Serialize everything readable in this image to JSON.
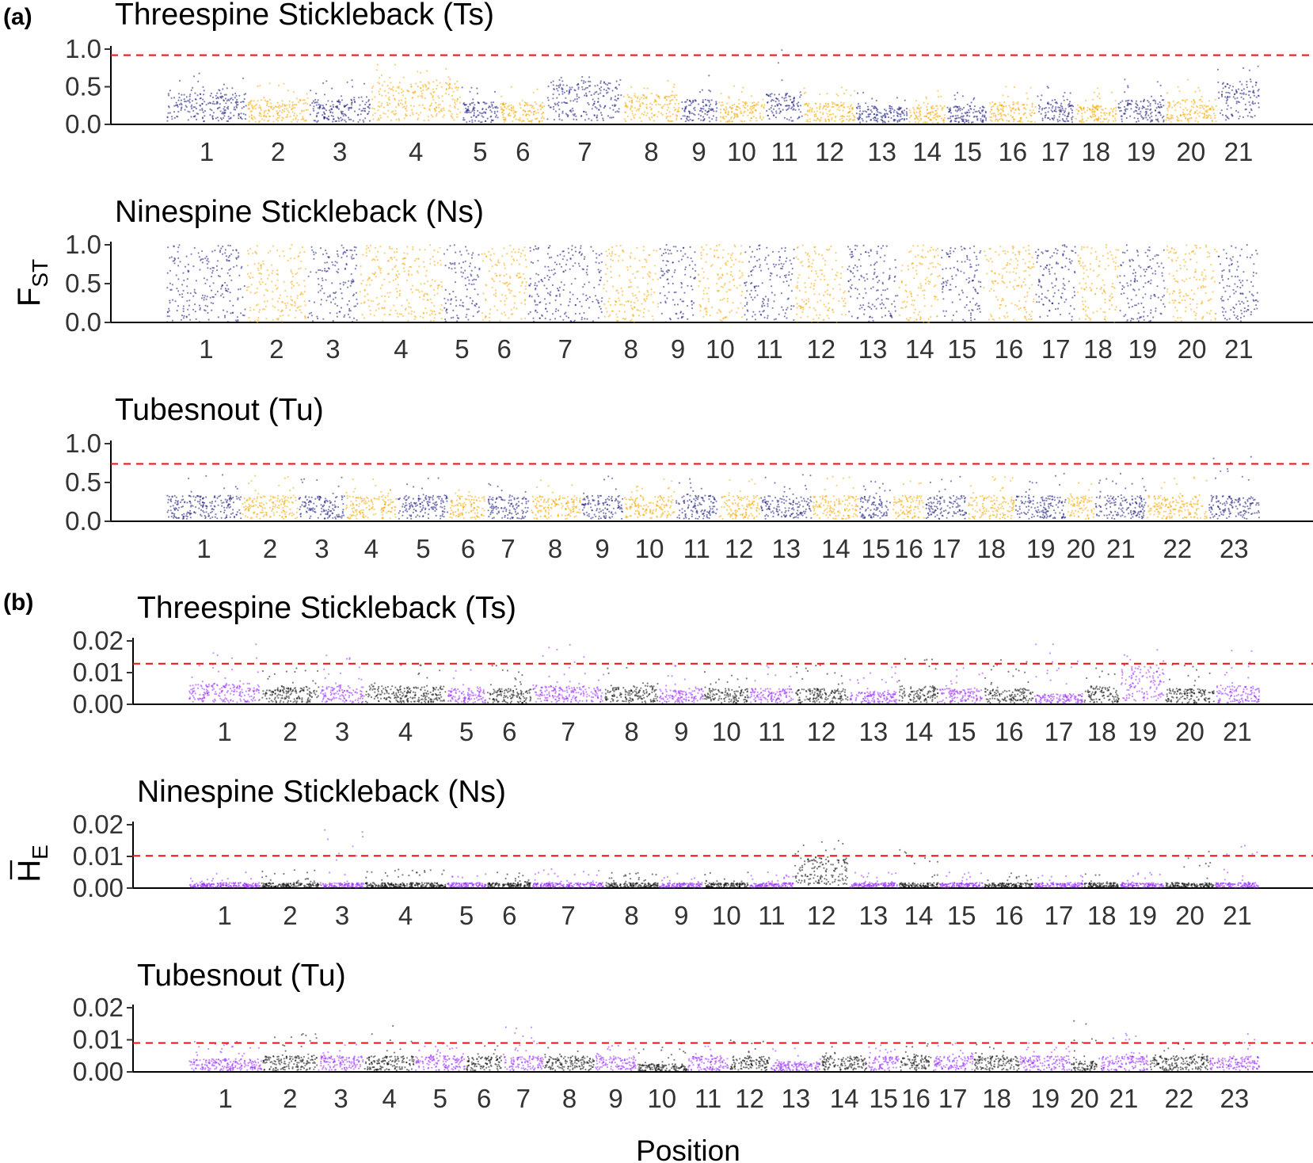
{
  "figure": {
    "panel_a_label": "(a)",
    "panel_b_label": "(b)",
    "ylabel_a_main": "F",
    "ylabel_a_sub": "ST",
    "ylabel_b_main": "H",
    "ylabel_b_sub": "E",
    "xlabel": "Position"
  },
  "chart_data": [
    {
      "type": "scatter",
      "panel": "(a)",
      "title": "Threespine Stickleback (Ts)",
      "ylabel": "FST",
      "xlabel": "Position",
      "y_ticks": [
        "0.0",
        "0.5",
        "1.0"
      ],
      "ylim": [
        0,
        1.0
      ],
      "threshold": 0.92,
      "colors": [
        "#1a1a80",
        "#f5a800"
      ],
      "categories": [
        "1",
        "2",
        "3",
        "4",
        "5",
        "6",
        "7",
        "8",
        "9",
        "10",
        "11",
        "12",
        "13",
        "14",
        "15",
        "16",
        "17",
        "18",
        "19",
        "20",
        "21"
      ],
      "chrom_length": [
        17.0,
        13.0,
        13.0,
        19.0,
        8.0,
        10.0,
        16.0,
        12.0,
        8.0,
        10.0,
        8.0,
        11.0,
        11.0,
        8.0,
        9.0,
        10.0,
        8.0,
        9.0,
        10.0,
        11.0,
        9.0
      ],
      "typical_value": [
        0.25,
        0.2,
        0.2,
        0.35,
        0.18,
        0.18,
        0.35,
        0.25,
        0.2,
        0.18,
        0.25,
        0.18,
        0.15,
        0.15,
        0.15,
        0.18,
        0.18,
        0.15,
        0.2,
        0.2,
        0.35
      ],
      "max_value": [
        0.68,
        0.55,
        0.6,
        0.8,
        0.52,
        0.5,
        0.65,
        0.58,
        0.65,
        0.55,
        1.0,
        0.5,
        0.45,
        0.45,
        0.45,
        0.55,
        0.52,
        0.5,
        0.6,
        0.6,
        0.78
      ]
    },
    {
      "type": "scatter",
      "panel": "(a)",
      "title": "Ninespine Stickleback (Ns)",
      "ylabel": "FST",
      "xlabel": "Position",
      "y_ticks": [
        "0.0",
        "0.5",
        "1.0"
      ],
      "ylim": [
        0,
        1.0
      ],
      "threshold": null,
      "colors": [
        "#1a1a80",
        "#f5a800"
      ],
      "categories": [
        "1",
        "2",
        "3",
        "4",
        "5",
        "6",
        "7",
        "8",
        "9",
        "10",
        "11",
        "12",
        "13",
        "14",
        "15",
        "16",
        "17",
        "18",
        "19",
        "20",
        "21"
      ],
      "chrom_length": [
        17.0,
        13.0,
        11.0,
        18.0,
        8.0,
        10.0,
        16.0,
        12.0,
        8.0,
        10.0,
        11.0,
        11.0,
        11.0,
        9.0,
        9.0,
        11.0,
        9.0,
        9.0,
        10.0,
        11.0,
        9.0
      ],
      "typical_value": [
        0.5,
        0.5,
        0.5,
        0.5,
        0.5,
        0.5,
        0.5,
        0.5,
        0.5,
        0.5,
        0.5,
        0.5,
        0.5,
        0.5,
        0.5,
        0.5,
        0.5,
        0.5,
        0.5,
        0.5,
        0.5
      ],
      "max_value": [
        1.0,
        1.0,
        1.0,
        1.0,
        1.0,
        1.0,
        1.0,
        1.0,
        1.0,
        1.0,
        1.0,
        1.0,
        1.0,
        1.0,
        1.0,
        1.0,
        1.0,
        1.0,
        1.0,
        1.0,
        1.0
      ]
    },
    {
      "type": "scatter",
      "panel": "(a)",
      "title": "Tubesnout (Tu)",
      "ylabel": "FST",
      "xlabel": "Position",
      "y_ticks": [
        "0.0",
        "0.5",
        "1.0"
      ],
      "ylim": [
        0,
        1.0
      ],
      "threshold": 0.74,
      "colors": [
        "#1a1a80",
        "#f5a800"
      ],
      "categories": [
        "1",
        "2",
        "3",
        "4",
        "5",
        "6",
        "7",
        "8",
        "9",
        "10",
        "11",
        "12",
        "13",
        "14",
        "15",
        "16",
        "17",
        "18",
        "19",
        "20",
        "21",
        "22",
        "23"
      ],
      "chrom_length": [
        16.0,
        12.0,
        10.0,
        11.0,
        11.0,
        8.0,
        9.0,
        11.0,
        9.0,
        11.0,
        9.0,
        9.0,
        11.0,
        10.0,
        7.0,
        7.0,
        9.0,
        10.0,
        11.0,
        6.0,
        11.0,
        13.0,
        11.0
      ],
      "typical_value": [
        0.2,
        0.2,
        0.2,
        0.2,
        0.2,
        0.2,
        0.2,
        0.2,
        0.2,
        0.2,
        0.2,
        0.2,
        0.2,
        0.2,
        0.2,
        0.2,
        0.2,
        0.2,
        0.2,
        0.2,
        0.2,
        0.2,
        0.2
      ],
      "max_value": [
        0.62,
        0.6,
        0.58,
        0.55,
        0.62,
        0.55,
        0.6,
        0.58,
        0.6,
        0.55,
        0.58,
        0.55,
        0.6,
        0.58,
        0.55,
        0.55,
        0.6,
        0.58,
        0.62,
        0.5,
        0.62,
        0.6,
        0.85
      ]
    },
    {
      "type": "scatter",
      "panel": "(b)",
      "title": "Threespine Stickleback (Ts)",
      "ylabel": "HE",
      "xlabel": "Position",
      "y_ticks": [
        "0.00",
        "0.01",
        "0.02"
      ],
      "ylim": [
        0,
        0.02
      ],
      "threshold": 0.0128,
      "colors": [
        "#9b30ff",
        "#111111"
      ],
      "categories": [
        "1",
        "2",
        "3",
        "4",
        "5",
        "6",
        "7",
        "8",
        "9",
        "10",
        "11",
        "12",
        "13",
        "14",
        "15",
        "16",
        "17",
        "18",
        "19",
        "20",
        "21"
      ],
      "chrom_length": [
        16.0,
        13.0,
        10.0,
        18.0,
        9.0,
        10.0,
        16.0,
        12.0,
        10.0,
        10.0,
        10.0,
        12.0,
        11.0,
        9.0,
        10.0,
        11.0,
        11.0,
        8.0,
        10.0,
        11.0,
        10.0
      ],
      "typical_value": [
        0.004,
        0.0035,
        0.0035,
        0.0035,
        0.003,
        0.003,
        0.0035,
        0.0035,
        0.003,
        0.003,
        0.003,
        0.003,
        0.0025,
        0.0035,
        0.003,
        0.003,
        0.002,
        0.0035,
        0.0075,
        0.003,
        0.0035
      ],
      "max_value": [
        0.019,
        0.013,
        0.016,
        0.014,
        0.012,
        0.013,
        0.019,
        0.013,
        0.013,
        0.014,
        0.013,
        0.013,
        0.012,
        0.018,
        0.012,
        0.015,
        0.019,
        0.013,
        0.018,
        0.013,
        0.018
      ]
    },
    {
      "type": "scatter",
      "panel": "(b)",
      "title": "Ninespine Stickleback (Ns)",
      "ylabel": "HE",
      "xlabel": "Position",
      "y_ticks": [
        "0.00",
        "0.01",
        "0.02"
      ],
      "ylim": [
        0,
        0.02
      ],
      "threshold": 0.0102,
      "colors": [
        "#9b30ff",
        "#111111"
      ],
      "categories": [
        "1",
        "2",
        "3",
        "4",
        "5",
        "6",
        "7",
        "8",
        "9",
        "10",
        "11",
        "12",
        "13",
        "14",
        "15",
        "16",
        "17",
        "18",
        "19",
        "20",
        "21"
      ],
      "chrom_length": [
        16.0,
        13.0,
        10.0,
        18.0,
        9.0,
        10.0,
        16.0,
        12.0,
        10.0,
        10.0,
        10.0,
        12.0,
        11.0,
        9.0,
        10.0,
        11.0,
        11.0,
        8.0,
        10.0,
        11.0,
        10.0
      ],
      "typical_value": [
        0.001,
        0.001,
        0.001,
        0.001,
        0.001,
        0.001,
        0.001,
        0.001,
        0.001,
        0.001,
        0.001,
        0.006,
        0.001,
        0.001,
        0.001,
        0.001,
        0.001,
        0.001,
        0.001,
        0.001,
        0.001
      ],
      "max_value": [
        0.005,
        0.006,
        0.019,
        0.006,
        0.005,
        0.005,
        0.007,
        0.005,
        0.005,
        0.005,
        0.005,
        0.016,
        0.005,
        0.015,
        0.005,
        0.005,
        0.005,
        0.005,
        0.005,
        0.015,
        0.015
      ]
    },
    {
      "type": "scatter",
      "panel": "(b)",
      "title": "Tubesnout (Tu)",
      "ylabel": "HE",
      "xlabel": "Position",
      "y_ticks": [
        "0.00",
        "0.01",
        "0.02"
      ],
      "ylim": [
        0,
        0.02
      ],
      "threshold": 0.009,
      "colors": [
        "#9b30ff",
        "#111111"
      ],
      "categories": [
        "1",
        "2",
        "3",
        "4",
        "5",
        "6",
        "7",
        "8",
        "9",
        "10",
        "11",
        "12",
        "13",
        "14",
        "15",
        "16",
        "17",
        "18",
        "19",
        "20",
        "21",
        "22",
        "23"
      ],
      "chrom_length": [
        16.0,
        12.0,
        10.0,
        11.0,
        11.0,
        8.0,
        9.0,
        11.0,
        9.0,
        11.0,
        9.0,
        9.0,
        11.0,
        10.0,
        7.0,
        7.0,
        9.0,
        10.0,
        11.0,
        6.0,
        11.0,
        13.0,
        11.0
      ],
      "typical_value": [
        0.0025,
        0.003,
        0.003,
        0.003,
        0.003,
        0.003,
        0.003,
        0.003,
        0.003,
        0.0015,
        0.003,
        0.003,
        0.002,
        0.003,
        0.003,
        0.003,
        0.003,
        0.003,
        0.003,
        0.002,
        0.003,
        0.003,
        0.003
      ],
      "max_value": [
        0.01,
        0.012,
        0.009,
        0.015,
        0.009,
        0.009,
        0.014,
        0.01,
        0.009,
        0.009,
        0.009,
        0.01,
        0.009,
        0.009,
        0.009,
        0.009,
        0.009,
        0.009,
        0.009,
        0.018,
        0.012,
        0.009,
        0.013
      ]
    }
  ]
}
